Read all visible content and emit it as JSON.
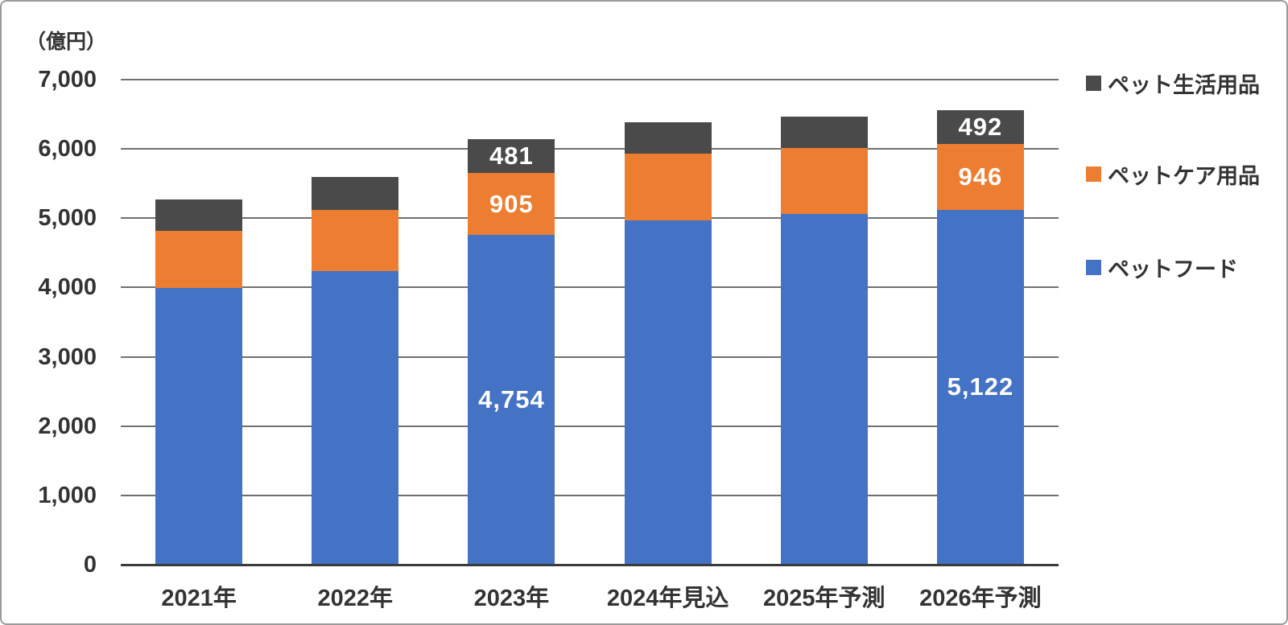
{
  "chart_data": {
    "type": "bar",
    "stacked": true,
    "unit_label": "（億円）",
    "categories": [
      "2021年",
      "2022年",
      "2023年",
      "2024年見込",
      "2025年予測",
      "2026年予測"
    ],
    "series": [
      {
        "name": "ペットフード",
        "color": "#4472C4",
        "values": [
          3990,
          4235,
          4754,
          4965,
          5065,
          5122
        ],
        "data_labels": [
          "",
          "",
          "4,754",
          "",
          "",
          "5,122"
        ]
      },
      {
        "name": "ペットケア用品",
        "color": "#ED7D31",
        "values": [
          825,
          885,
          905,
          970,
          945,
          946
        ],
        "data_labels": [
          "",
          "",
          "905",
          "",
          "",
          "946"
        ]
      },
      {
        "name": "ペット生活用品",
        "color": "#4a4a4a",
        "values": [
          455,
          480,
          481,
          455,
          455,
          492
        ],
        "data_labels": [
          "",
          "",
          "481",
          "",
          "",
          "492"
        ]
      }
    ],
    "totals_estimated": [
      5270,
      5600,
      6140,
      6390,
      6465,
      6560
    ],
    "y_axis": {
      "min": 0,
      "max": 7000,
      "interval": 1000,
      "tick_labels": [
        "7,000",
        "6,000",
        "5,000",
        "4,000",
        "3,000",
        "2,000",
        "1,000",
        "0"
      ]
    },
    "grid": true,
    "legend": {
      "position": "right",
      "items": [
        {
          "label": "ペット生活用品",
          "color": "#4a4a4a"
        },
        {
          "label": "ペットケア用品",
          "color": "#ED7D31"
        },
        {
          "label": "ペットフード",
          "color": "#4472C4"
        }
      ]
    },
    "colors": {
      "grid_line": "#6f6f6f",
      "axis_line": "#3b3b3b",
      "text": "#333333",
      "data_label_text": "#ffffff",
      "frame_border": "#9a9a9a"
    }
  }
}
